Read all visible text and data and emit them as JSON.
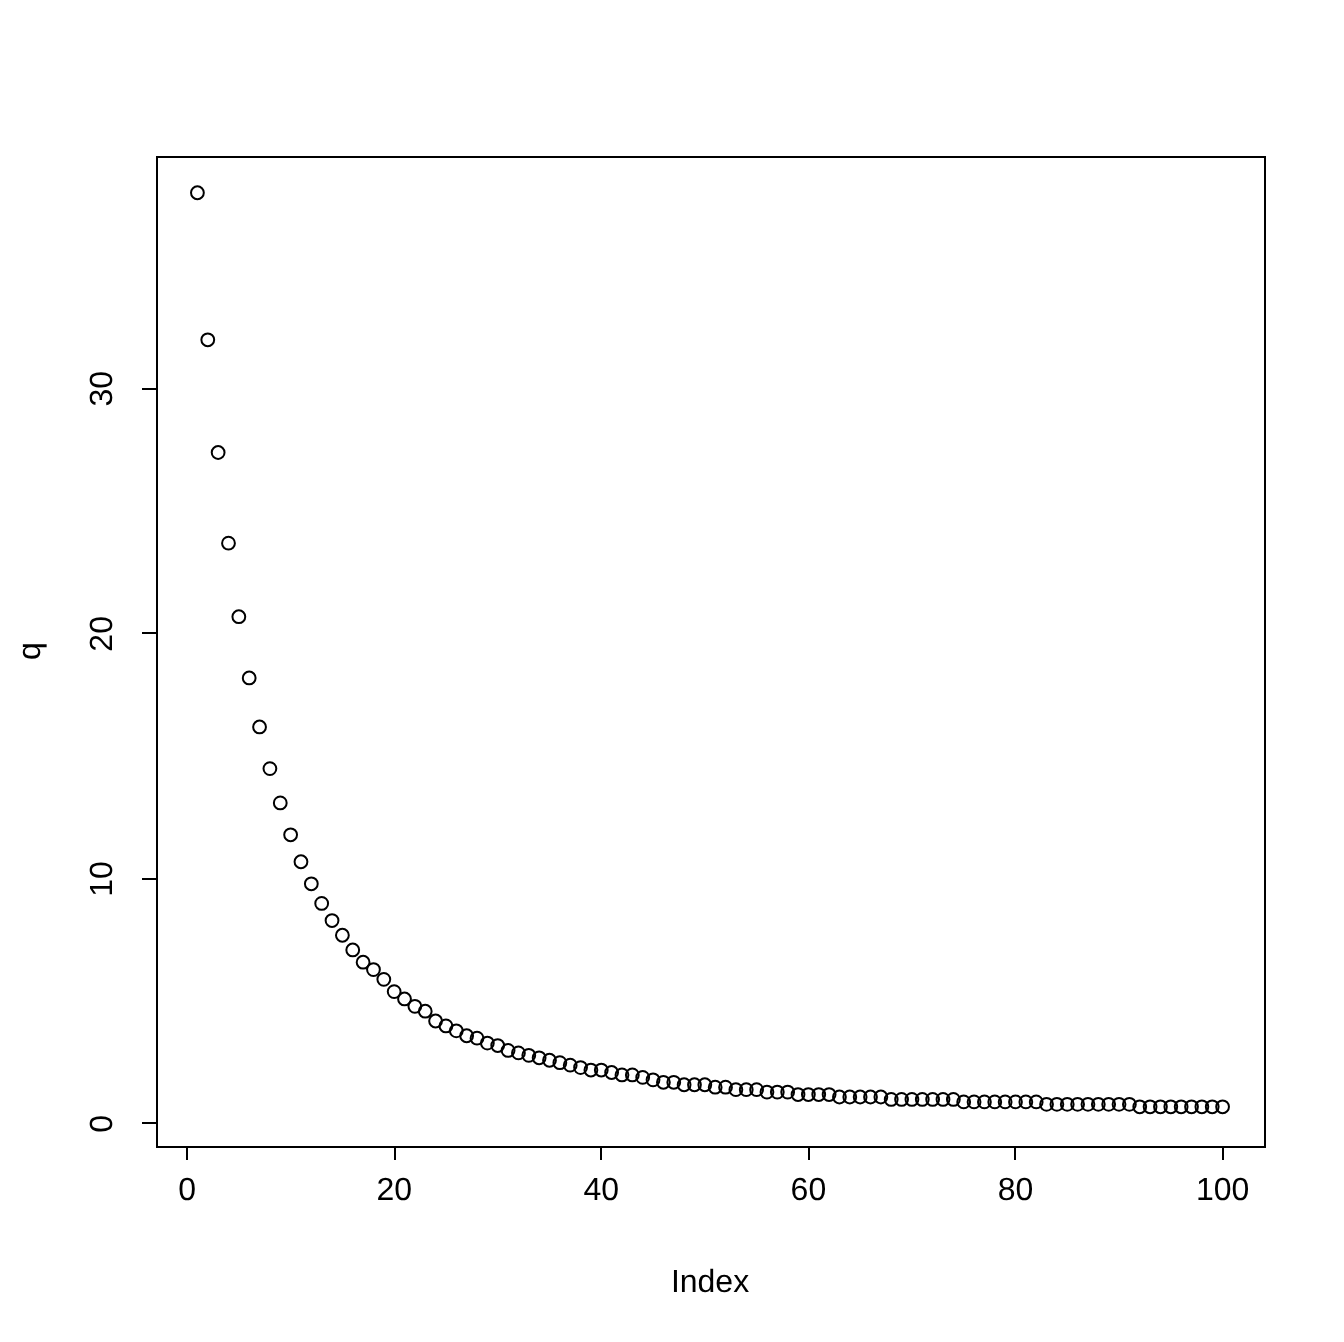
{
  "chart_data": {
    "type": "scatter",
    "xlabel": "Index",
    "ylabel": "q",
    "x": [
      1,
      2,
      3,
      4,
      5,
      6,
      7,
      8,
      9,
      10,
      11,
      12,
      13,
      14,
      15,
      16,
      17,
      18,
      19,
      20,
      21,
      22,
      23,
      24,
      25,
      26,
      27,
      28,
      29,
      30,
      31,
      32,
      33,
      34,
      35,
      36,
      37,
      38,
      39,
      40,
      41,
      42,
      43,
      44,
      45,
      46,
      47,
      48,
      49,
      50,
      51,
      52,
      53,
      54,
      55,
      56,
      57,
      58,
      59,
      60,
      61,
      62,
      63,
      64,
      65,
      66,
      67,
      68,
      69,
      70,
      71,
      72,
      73,
      74,
      75,
      76,
      77,
      78,
      79,
      80,
      81,
      82,
      83,
      84,
      85,
      86,
      87,
      88,
      89,
      90,
      91,
      92,
      93,
      94,
      95,
      96,
      97,
      98,
      99,
      100
    ],
    "values": [
      38.0,
      32.0,
      27.4,
      23.7,
      20.7,
      18.2,
      16.2,
      14.5,
      13.1,
      11.8,
      10.7,
      9.8,
      9.0,
      8.3,
      7.7,
      7.1,
      6.6,
      6.3,
      5.9,
      5.4,
      5.1,
      4.8,
      4.6,
      4.2,
      4.0,
      3.8,
      3.6,
      3.5,
      3.3,
      3.2,
      3.0,
      2.9,
      2.8,
      2.7,
      2.6,
      2.5,
      2.4,
      2.3,
      2.2,
      2.2,
      2.1,
      2.0,
      2.0,
      1.9,
      1.8,
      1.7,
      1.7,
      1.6,
      1.6,
      1.6,
      1.5,
      1.5,
      1.4,
      1.4,
      1.4,
      1.3,
      1.3,
      1.3,
      1.2,
      1.2,
      1.2,
      1.2,
      1.1,
      1.1,
      1.1,
      1.1,
      1.1,
      1.0,
      1.0,
      1.0,
      1.0,
      1.0,
      1.0,
      1.0,
      0.9,
      0.9,
      0.9,
      0.9,
      0.9,
      0.9,
      0.9,
      0.9,
      0.8,
      0.8,
      0.8,
      0.8,
      0.8,
      0.8,
      0.8,
      0.8,
      0.8,
      0.7,
      0.7,
      0.7,
      0.7,
      0.7,
      0.7,
      0.7,
      0.7,
      0.7
    ],
    "color": "#000000",
    "marker": "circle",
    "xlim": [
      -3,
      104
    ],
    "xticks": [
      0,
      20,
      40,
      60,
      80,
      100
    ],
    "ylim": [
      -0.9,
      39.5
    ],
    "yticks": [
      0,
      10,
      20,
      30
    ],
    "grid": false,
    "legend": false
  }
}
